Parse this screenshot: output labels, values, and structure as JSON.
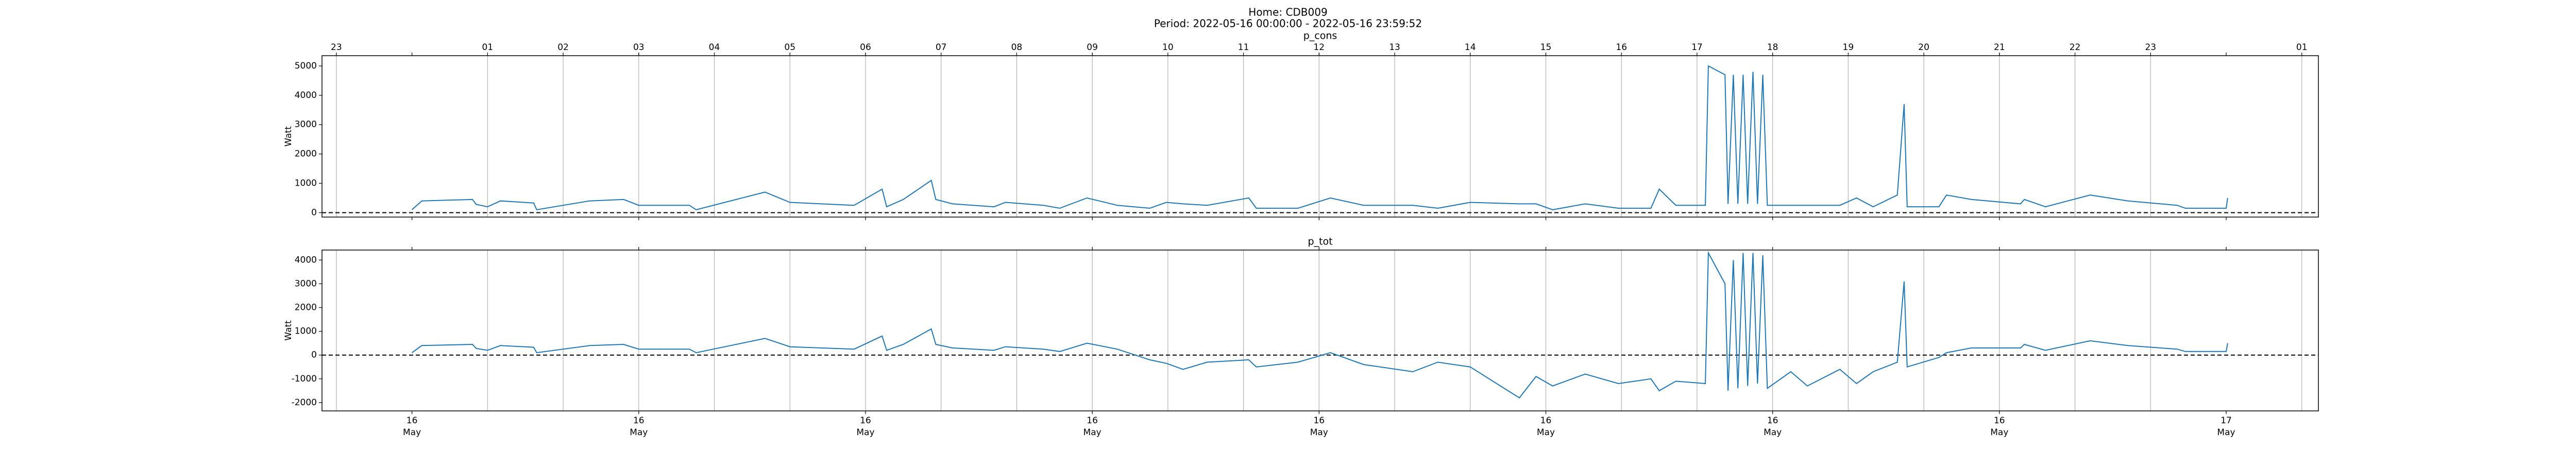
{
  "title": "Home: CDB009",
  "subtitle": "Period: 2022-05-16 00:00:00 - 2022-05-16 23:59:52",
  "chart_data": [
    {
      "type": "line",
      "title": "p_cons",
      "ylabel": "Watt",
      "color": "#1f77b4",
      "grid": "x",
      "hline": 0,
      "xlim": [
        -1.19,
        25.22
      ],
      "ylim": [
        -150,
        5350
      ],
      "yticks": [
        0,
        1000,
        2000,
        3000,
        4000,
        5000
      ],
      "x2ticks": [
        {
          "value": -1,
          "label": "23"
        },
        {
          "value": 1,
          "label": "01"
        },
        {
          "value": 2,
          "label": "02"
        },
        {
          "value": 3,
          "label": "03"
        },
        {
          "value": 4,
          "label": "04"
        },
        {
          "value": 5,
          "label": "05"
        },
        {
          "value": 6,
          "label": "06"
        },
        {
          "value": 7,
          "label": "07"
        },
        {
          "value": 8,
          "label": "08"
        },
        {
          "value": 9,
          "label": "09"
        },
        10,
        11,
        12,
        13,
        14,
        15,
        16,
        17,
        18,
        19,
        20,
        21,
        22,
        23,
        {
          "value": 25,
          "label": "01"
        }
      ],
      "x": [
        0,
        0.13,
        0.8,
        0.85,
        1,
        1.17,
        1.61,
        1.65,
        2.35,
        2.8,
        3,
        3.67,
        3.76,
        4.67,
        5,
        5.41,
        5.85,
        6.22,
        6.28,
        6.5,
        6.87,
        6.93,
        7.15,
        7.7,
        7.85,
        8.35,
        8.57,
        8.93,
        9.33,
        9.76,
        9.98,
        10.2,
        10.52,
        11.07,
        11.17,
        11.72,
        12.15,
        12.59,
        13.24,
        13.57,
        14,
        14.65,
        14.87,
        15.09,
        15.52,
        15.96,
        16.39,
        16.5,
        16.72,
        17.11,
        17.15,
        17.37,
        17.41,
        17.48,
        17.54,
        17.61,
        17.67,
        17.74,
        17.8,
        17.87,
        17.93,
        18.24,
        18.46,
        18.89,
        19.11,
        19.33,
        19.65,
        19.74,
        19.78,
        20.2,
        20.3,
        20.63,
        21.28,
        21.33,
        21.61,
        22.2,
        22.7,
        23.35,
        23.46,
        24,
        24.02
      ],
      "values": [
        100,
        400,
        450,
        280,
        200,
        400,
        330,
        100,
        400,
        450,
        250,
        250,
        100,
        700,
        350,
        300,
        250,
        800,
        200,
        450,
        1100,
        450,
        300,
        200,
        350,
        250,
        150,
        500,
        250,
        150,
        350,
        300,
        250,
        500,
        150,
        150,
        500,
        250,
        250,
        150,
        350,
        300,
        300,
        100,
        300,
        150,
        150,
        800,
        250,
        250,
        5000,
        4700,
        300,
        4700,
        300,
        4700,
        300,
        4800,
        300,
        4700,
        250,
        250,
        250,
        250,
        500,
        200,
        600,
        3700,
        200,
        200,
        600,
        450,
        300,
        450,
        200,
        600,
        400,
        250,
        150,
        150,
        500
      ]
    },
    {
      "type": "line",
      "title": "p_tot",
      "ylabel": "Watt",
      "color": "#1f77b4",
      "grid": "x",
      "hline": 0,
      "xlim": [
        -1.19,
        25.22
      ],
      "ylim": [
        -2350,
        4420
      ],
      "yticks": [
        -2000,
        -1000,
        0,
        1000,
        2000,
        3000,
        4000
      ],
      "xticks": [
        {
          "value": 0,
          "label": "16 May"
        },
        {
          "value": 3,
          "label": "16 May"
        },
        {
          "value": 6,
          "label": "16 May"
        },
        {
          "value": 9,
          "label": "16 May"
        },
        {
          "value": 12,
          "label": "16 May"
        },
        {
          "value": 15,
          "label": "16 May"
        },
        {
          "value": 18,
          "label": "16 May"
        },
        {
          "value": 21,
          "label": "16 May"
        },
        {
          "value": 24,
          "label": "17 May"
        }
      ],
      "x": [
        0,
        0.13,
        0.8,
        0.85,
        1,
        1.17,
        1.61,
        1.65,
        2.35,
        2.8,
        3,
        3.67,
        3.76,
        4.67,
        5,
        5.41,
        5.85,
        6.22,
        6.28,
        6.5,
        6.87,
        6.93,
        7.15,
        7.7,
        7.85,
        8.35,
        8.57,
        8.93,
        9.33,
        9.76,
        9.98,
        10.2,
        10.52,
        11.07,
        11.17,
        11.72,
        12.15,
        12.59,
        13.24,
        13.57,
        14,
        14.65,
        14.87,
        15.09,
        15.52,
        15.96,
        16.39,
        16.5,
        16.72,
        17.11,
        17.15,
        17.37,
        17.41,
        17.48,
        17.54,
        17.61,
        17.67,
        17.74,
        17.8,
        17.87,
        17.93,
        18.24,
        18.46,
        18.89,
        19.11,
        19.33,
        19.65,
        19.74,
        19.78,
        20.2,
        20.3,
        20.63,
        21.28,
        21.33,
        21.61,
        22.2,
        22.7,
        23.35,
        23.46,
        24,
        24.02
      ],
      "values": [
        100,
        400,
        450,
        280,
        200,
        400,
        330,
        100,
        400,
        450,
        250,
        250,
        100,
        700,
        350,
        300,
        250,
        800,
        200,
        450,
        1100,
        450,
        300,
        200,
        350,
        250,
        150,
        500,
        250,
        -200,
        -350,
        -600,
        -300,
        -200,
        -500,
        -300,
        100,
        -400,
        -700,
        -300,
        -500,
        -1800,
        -900,
        -1300,
        -800,
        -1200,
        -1000,
        -1500,
        -1100,
        -1200,
        4300,
        3000,
        -1500,
        4000,
        -1400,
        4300,
        -1300,
        4300,
        -1200,
        4200,
        -1400,
        -700,
        -1300,
        -600,
        -1200,
        -700,
        -300,
        3100,
        -500,
        -100,
        100,
        300,
        300,
        450,
        200,
        600,
        400,
        250,
        150,
        150,
        500
      ]
    }
  ]
}
